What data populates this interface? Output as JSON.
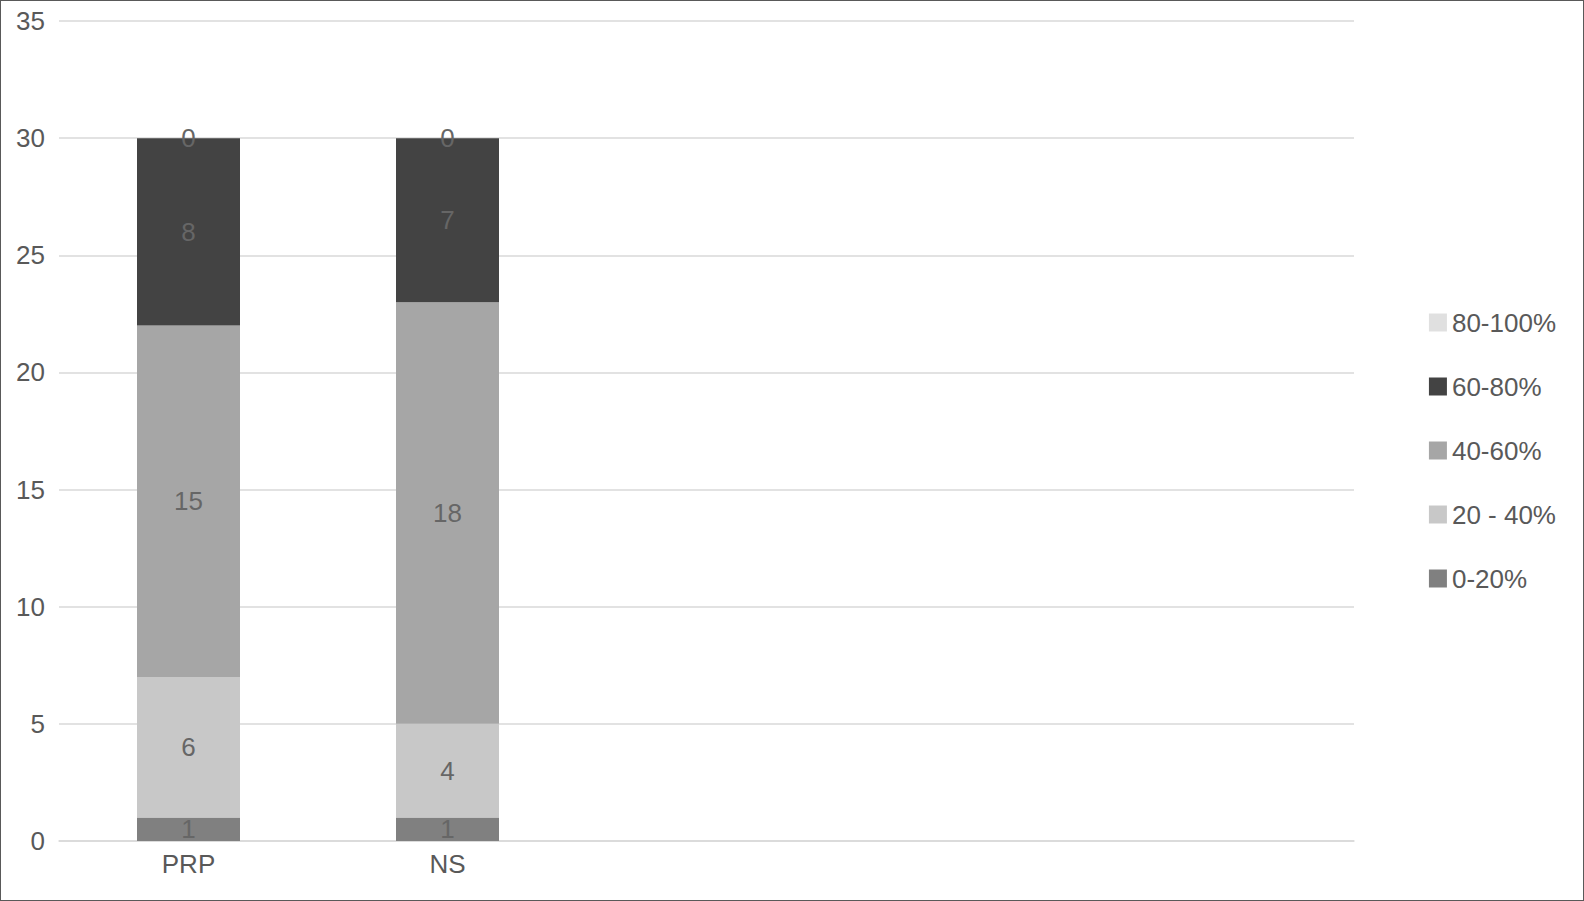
{
  "chart_data": {
    "type": "bar",
    "categories": [
      "PRP",
      "NS",
      null,
      null,
      null
    ],
    "series": [
      {
        "name": "0-20%",
        "color": "#808080",
        "values": [
          1,
          1,
          null,
          null,
          null
        ]
      },
      {
        "name": "20 - 40%",
        "color": "#c8c8c8",
        "values": [
          6,
          4,
          null,
          null,
          null
        ]
      },
      {
        "name": "40-60%",
        "color": "#a6a6a6",
        "values": [
          15,
          18,
          null,
          null,
          null
        ]
      },
      {
        "name": "60-80%",
        "color": "#434343",
        "values": [
          8,
          7,
          null,
          null,
          null
        ]
      },
      {
        "name": "80-100%",
        "color": "#e0e0e0",
        "values": [
          0,
          0,
          null,
          null,
          null
        ]
      }
    ],
    "ylim": [
      0,
      35
    ],
    "yticks": [
      0,
      5,
      10,
      15,
      20,
      25,
      30,
      35
    ],
    "grid": true,
    "stacked": true,
    "data_labels": true,
    "legend": "right"
  }
}
